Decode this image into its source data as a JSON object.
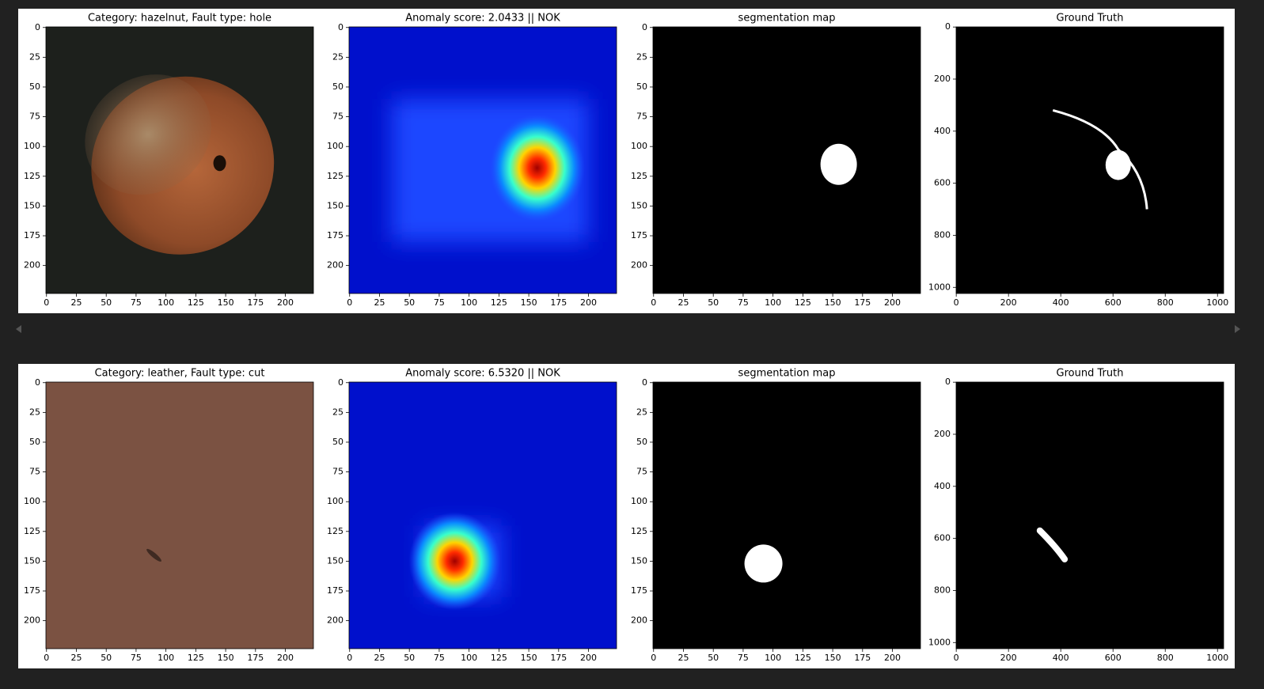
{
  "chart_data": [
    {
      "type": "image",
      "title": "Category: hazelnut, Fault type: hole",
      "xlim": [
        -0.5,
        223.5
      ],
      "ylim": [
        223.5,
        -0.5
      ],
      "xticks": [
        0,
        25,
        50,
        75,
        100,
        125,
        150,
        175,
        200
      ],
      "yticks": [
        0,
        25,
        50,
        75,
        100,
        125,
        150,
        175,
        200
      ]
    },
    {
      "type": "image",
      "title": "Anomaly score: 2.0433 || NOK",
      "xlim": [
        -0.5,
        223.5
      ],
      "ylim": [
        223.5,
        -0.5
      ],
      "xticks": [
        0,
        25,
        50,
        75,
        100,
        125,
        150,
        175,
        200
      ],
      "yticks": [
        0,
        25,
        50,
        75,
        100,
        125,
        150,
        175,
        200
      ]
    },
    {
      "type": "image",
      "title": "segmentation map",
      "xlim": [
        -0.5,
        223.5
      ],
      "ylim": [
        223.5,
        -0.5
      ],
      "xticks": [
        0,
        25,
        50,
        75,
        100,
        125,
        150,
        175,
        200
      ],
      "yticks": [
        0,
        25,
        50,
        75,
        100,
        125,
        150,
        175,
        200
      ]
    },
    {
      "type": "image",
      "title": "Ground Truth",
      "xlim": [
        -0.5,
        1023.5
      ],
      "ylim": [
        1023.5,
        -0.5
      ],
      "xticks": [
        0,
        200,
        400,
        600,
        800,
        1000
      ],
      "yticks": [
        0,
        200,
        400,
        600,
        800,
        1000
      ]
    },
    {
      "type": "image",
      "title": "Category: leather, Fault type: cut",
      "xlim": [
        -0.5,
        223.5
      ],
      "ylim": [
        223.5,
        -0.5
      ],
      "xticks": [
        0,
        25,
        50,
        75,
        100,
        125,
        150,
        175,
        200
      ],
      "yticks": [
        0,
        25,
        50,
        75,
        100,
        125,
        150,
        175,
        200
      ]
    },
    {
      "type": "image",
      "title": "Anomaly score: 6.5320 || NOK",
      "xlim": [
        -0.5,
        223.5
      ],
      "ylim": [
        223.5,
        -0.5
      ],
      "xticks": [
        0,
        25,
        50,
        75,
        100,
        125,
        150,
        175,
        200
      ],
      "yticks": [
        0,
        25,
        50,
        75,
        100,
        125,
        150,
        175,
        200
      ]
    },
    {
      "type": "image",
      "title": "segmentation map",
      "xlim": [
        -0.5,
        223.5
      ],
      "ylim": [
        223.5,
        -0.5
      ],
      "xticks": [
        0,
        25,
        50,
        75,
        100,
        125,
        150,
        175,
        200
      ],
      "yticks": [
        0,
        25,
        50,
        75,
        100,
        125,
        150,
        175,
        200
      ]
    },
    {
      "type": "image",
      "title": "Ground Truth",
      "xlim": [
        -0.5,
        1023.5
      ],
      "ylim": [
        1023.5,
        -0.5
      ],
      "xticks": [
        0,
        200,
        400,
        600,
        800,
        1000
      ],
      "yticks": [
        0,
        200,
        400,
        600,
        800,
        1000
      ]
    }
  ]
}
